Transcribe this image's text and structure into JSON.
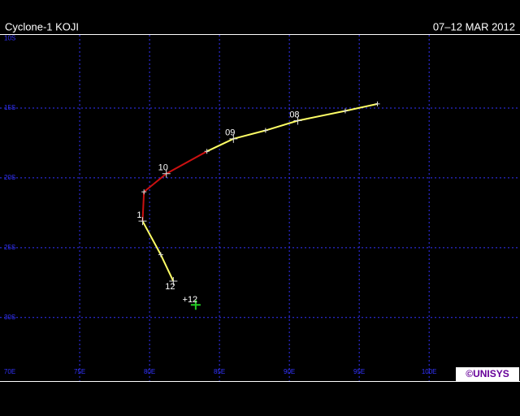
{
  "header": {
    "title": "Cyclone-1 KOJI",
    "dates": "07–12 MAR 2012"
  },
  "map": {
    "lonlim": [
      69.3,
      106.5
    ],
    "latlim": [
      -9.7,
      -34.5
    ],
    "lonticks": [
      {
        "value": 70,
        "label": "70E"
      },
      {
        "value": 75,
        "label": "75E"
      },
      {
        "value": 80,
        "label": "80E"
      },
      {
        "value": 85,
        "label": "85E"
      },
      {
        "value": 90,
        "label": "90E"
      },
      {
        "value": 95,
        "label": "95E"
      },
      {
        "value": 100,
        "label": "100E"
      }
    ],
    "latticks": [
      {
        "value": -10,
        "label": "10S"
      },
      {
        "value": -15,
        "label": "15S"
      },
      {
        "value": -20,
        "label": "20S"
      },
      {
        "value": -25,
        "label": "25S"
      },
      {
        "value": -30,
        "label": "30S"
      }
    ],
    "track": [
      {
        "lon": 96.3,
        "lat": -14.7,
        "color": "#ffff66"
      },
      {
        "lon": 94.0,
        "lat": -15.2,
        "color": "#ffff66"
      },
      {
        "lon": 90.6,
        "lat": -15.9,
        "color": "#ffff66",
        "label": "08"
      },
      {
        "lon": 88.3,
        "lat": -16.6,
        "color": "#ffff66"
      },
      {
        "lon": 86.0,
        "lat": -17.2,
        "color": "#ffff66",
        "label": "09"
      },
      {
        "lon": 84.1,
        "lat": -18.1,
        "color": "#cc1111"
      },
      {
        "lon": 81.2,
        "lat": -19.7,
        "color": "#cc1111",
        "label": "10"
      },
      {
        "lon": 79.6,
        "lat": -21.0,
        "color": "#cc1111"
      },
      {
        "lon": 79.5,
        "lat": -23.1,
        "color": "#ffff66",
        "label": "1"
      },
      {
        "lon": 80.8,
        "lat": -25.5,
        "color": "#ffff66"
      },
      {
        "lon": 81.7,
        "lat": -27.4,
        "color": "#ffff66",
        "label": "12"
      }
    ],
    "forecast": {
      "lon": 83.3,
      "lat": -29.1,
      "color": "#22cc22",
      "label": "+12"
    },
    "logo": "©UNISYS"
  }
}
